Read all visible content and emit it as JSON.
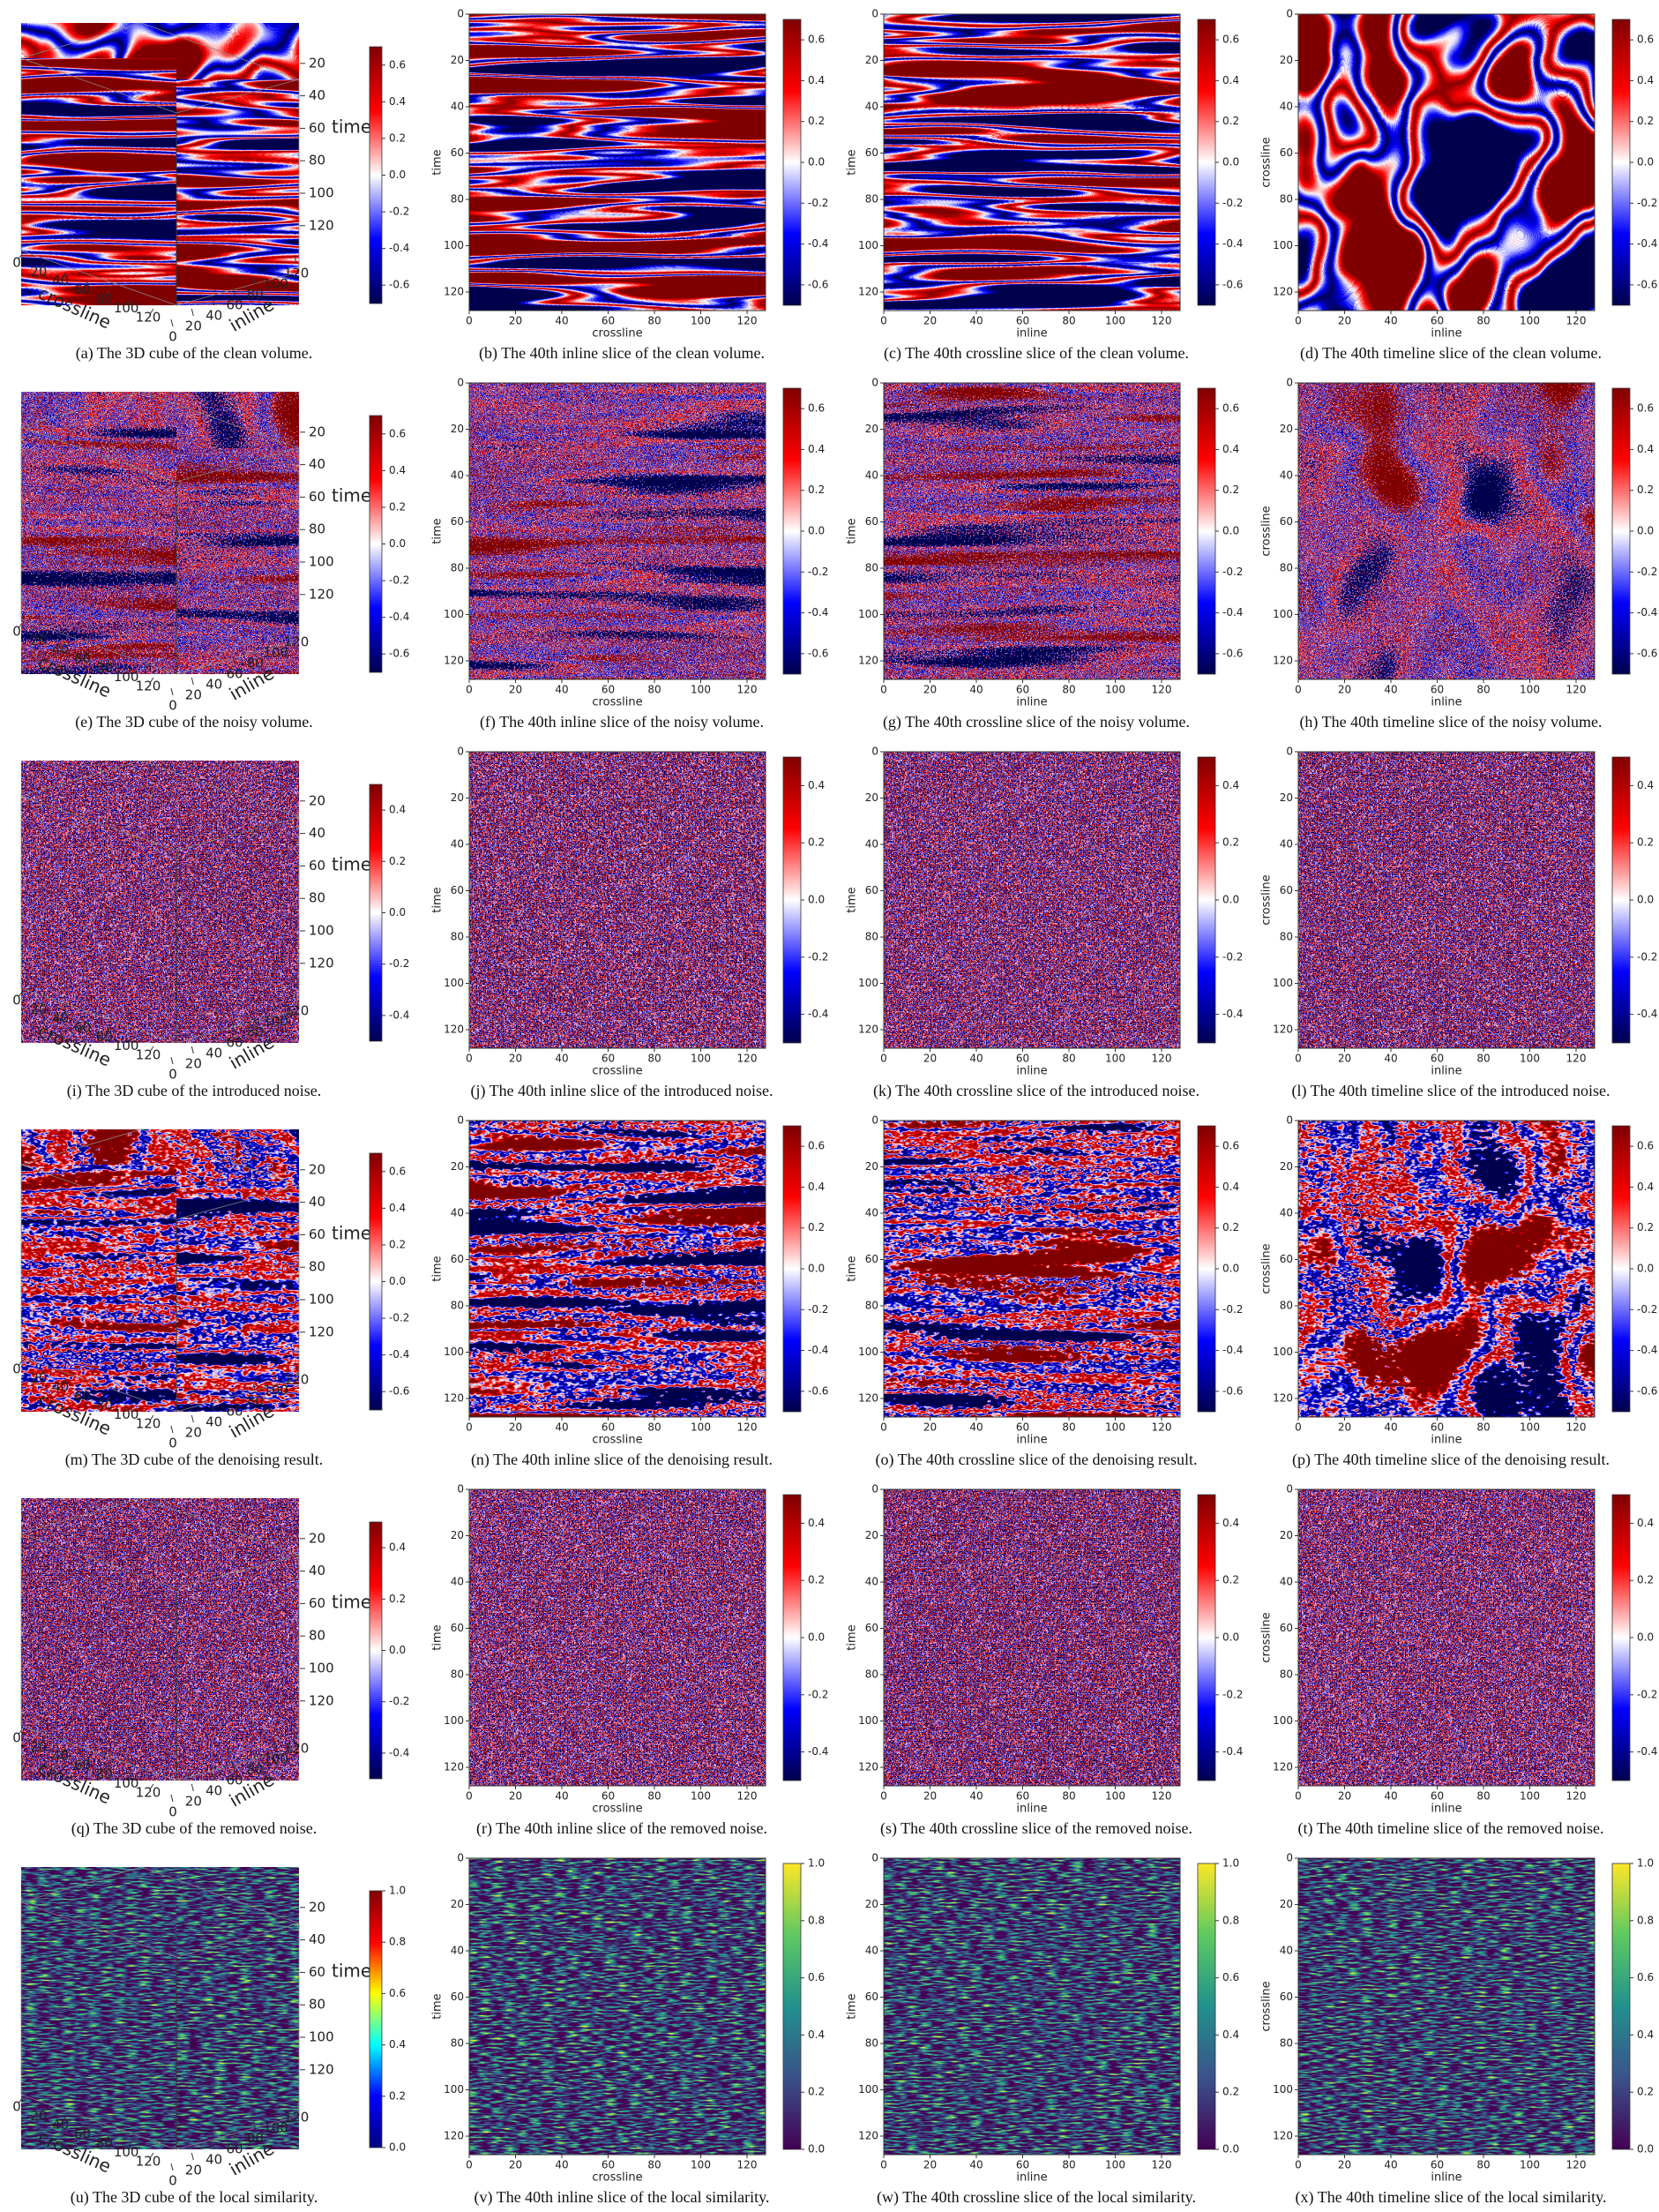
{
  "cube_axes": {
    "time_label": "time",
    "x_label": "crossline",
    "y_label": "inline",
    "time_ticks": [
      20,
      40,
      60,
      80,
      100,
      120
    ],
    "x_ticks": [
      0,
      20,
      40,
      60,
      80,
      100,
      120
    ],
    "y_ticks": [
      0,
      20,
      40,
      60,
      80,
      100,
      120
    ]
  },
  "slice_range": [
    0,
    128
  ],
  "slice_ticks": [
    0,
    20,
    40,
    60,
    80,
    100,
    120
  ],
  "slices": [
    {
      "x_label": "crossline",
      "y_label": "time"
    },
    {
      "x_label": "inline",
      "y_label": "time"
    },
    {
      "x_label": "inline",
      "y_label": "crossline"
    }
  ],
  "rows": [
    {
      "colormap": "seismic",
      "clim": [
        -0.7,
        0.7
      ],
      "colorbar_ticks": [
        -0.6,
        -0.4,
        -0.2,
        {
          "value": 0,
          "label": "0.0"
        },
        0.2,
        0.4,
        0.6
      ],
      "captions": [
        "(a) The 3D cube of the clean volume.",
        "(b) The 40th inline slice of the clean volume.",
        "(c) The 40th crossline slice of the clean volume.",
        "(d) The 40th timeline slice of the clean volume."
      ]
    },
    {
      "colormap": "seismic",
      "clim": [
        -0.7,
        0.7
      ],
      "colorbar_ticks": [
        -0.6,
        -0.4,
        -0.2,
        {
          "value": 0,
          "label": "0.0"
        },
        0.2,
        0.4,
        0.6
      ],
      "captions": [
        "(e) The 3D cube of the noisy volume.",
        "(f) The 40th inline slice of the noisy volume.",
        "(g) The 40th crossline slice of the noisy volume.",
        "(h) The 40th timeline slice of the noisy volume."
      ]
    },
    {
      "colormap": "seismic",
      "clim": [
        -0.5,
        0.5
      ],
      "colorbar_ticks": [
        -0.4,
        -0.2,
        {
          "value": 0,
          "label": "0.0"
        },
        0.2,
        0.4
      ],
      "captions": [
        "(i) The 3D cube of the introduced noise.",
        "(j) The 40th inline slice of the introduced noise.",
        "(k) The 40th crossline slice of the introduced noise.",
        "(l) The 40th timeline slice of the introduced noise."
      ]
    },
    {
      "colormap": "seismic",
      "clim": [
        -0.7,
        0.7
      ],
      "colorbar_ticks": [
        -0.6,
        -0.4,
        -0.2,
        {
          "value": 0,
          "label": "0.0"
        },
        0.2,
        0.4,
        0.6
      ],
      "captions": [
        "(m) The 3D cube of the denoising result.",
        "(n) The 40th inline slice of the denoising result.",
        "(o) The 40th crossline slice of the denoising result.",
        "(p) The 40th timeline slice of the denoising result."
      ]
    },
    {
      "colormap": "seismic",
      "clim": [
        -0.5,
        0.5
      ],
      "colorbar_ticks": [
        -0.4,
        -0.2,
        {
          "value": 0,
          "label": "0.0"
        },
        0.2,
        0.4
      ],
      "captions": [
        "(q) The 3D cube of the removed noise.",
        "(r) The 40th inline slice of the removed noise.",
        "(s) The 40th crossline slice of the removed noise.",
        "(t) The 40th timeline slice of the removed noise."
      ]
    },
    {
      "colormap": "viridis",
      "cube_colormap": "jet",
      "clim": [
        0,
        1
      ],
      "colorbar_ticks": [
        {
          "value": 0,
          "label": "0.0"
        },
        0.2,
        0.4,
        0.6,
        0.8,
        {
          "value": 1,
          "label": "1.0"
        }
      ],
      "captions": [
        "(u) The 3D cube of the local similarity.",
        "(v) The 40th inline slice of the local similarity.",
        "(w) The 40th crossline slice of the local similarity.",
        "(x) The 40th timeline slice of the local similarity."
      ]
    }
  ]
}
